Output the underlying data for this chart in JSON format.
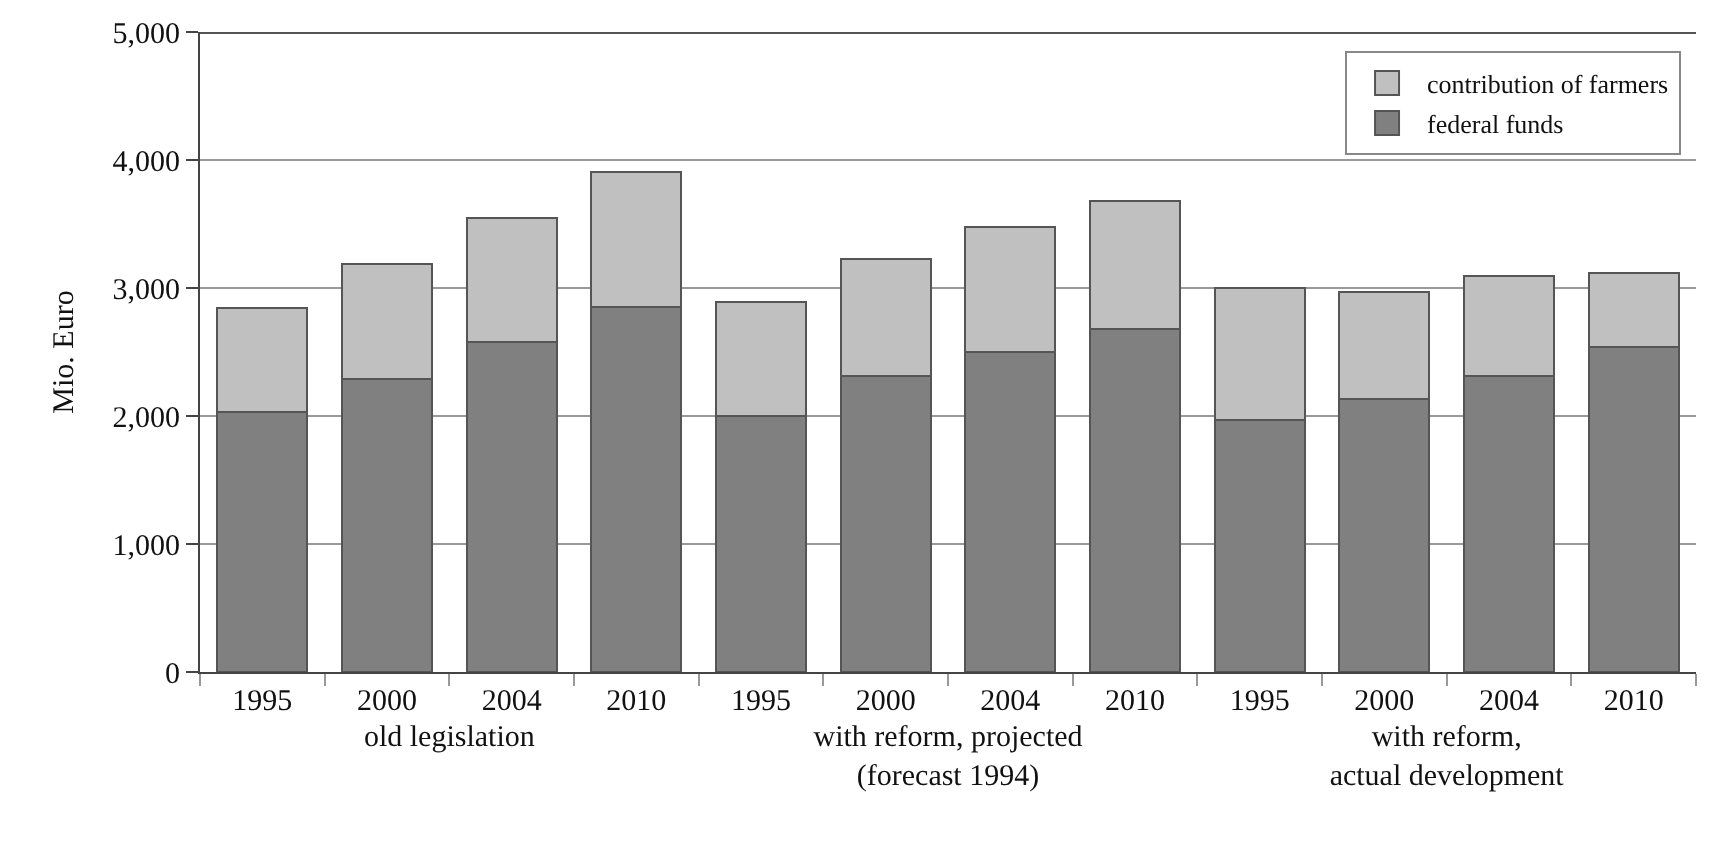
{
  "chart_data": {
    "type": "bar",
    "stacked": true,
    "ylabel": "Mio. Euro",
    "categories": [
      "1995",
      "2000",
      "2004",
      "2010",
      "1995",
      "2000",
      "2004",
      "2010",
      "1995",
      "2000",
      "2004",
      "2010"
    ],
    "series": [
      {
        "name": "federal funds",
        "color": "#808080",
        "values": [
          2030,
          2290,
          2580,
          2850,
          2000,
          2310,
          2500,
          2680,
          1970,
          2130,
          2310,
          2540
        ]
      },
      {
        "name": "contribution of farmers",
        "color": "#c0c0c0",
        "values": [
          810,
          900,
          970,
          1060,
          890,
          920,
          980,
          1000,
          1030,
          840,
          780,
          580
        ]
      }
    ],
    "ylim": [
      0,
      5000
    ],
    "yticks": [
      {
        "value": 0,
        "label": "0"
      },
      {
        "value": 1000,
        "label": "1,000"
      },
      {
        "value": 2000,
        "label": "2,000"
      },
      {
        "value": 3000,
        "label": "3,000"
      },
      {
        "value": 4000,
        "label": "4,000"
      },
      {
        "value": 5000,
        "label": "5,000"
      }
    ],
    "grid": "y",
    "legend": "top right",
    "annotations": [
      "old legislation",
      "with reform, projected\n(forecast 1994)",
      "with reform,\nactual development"
    ]
  }
}
